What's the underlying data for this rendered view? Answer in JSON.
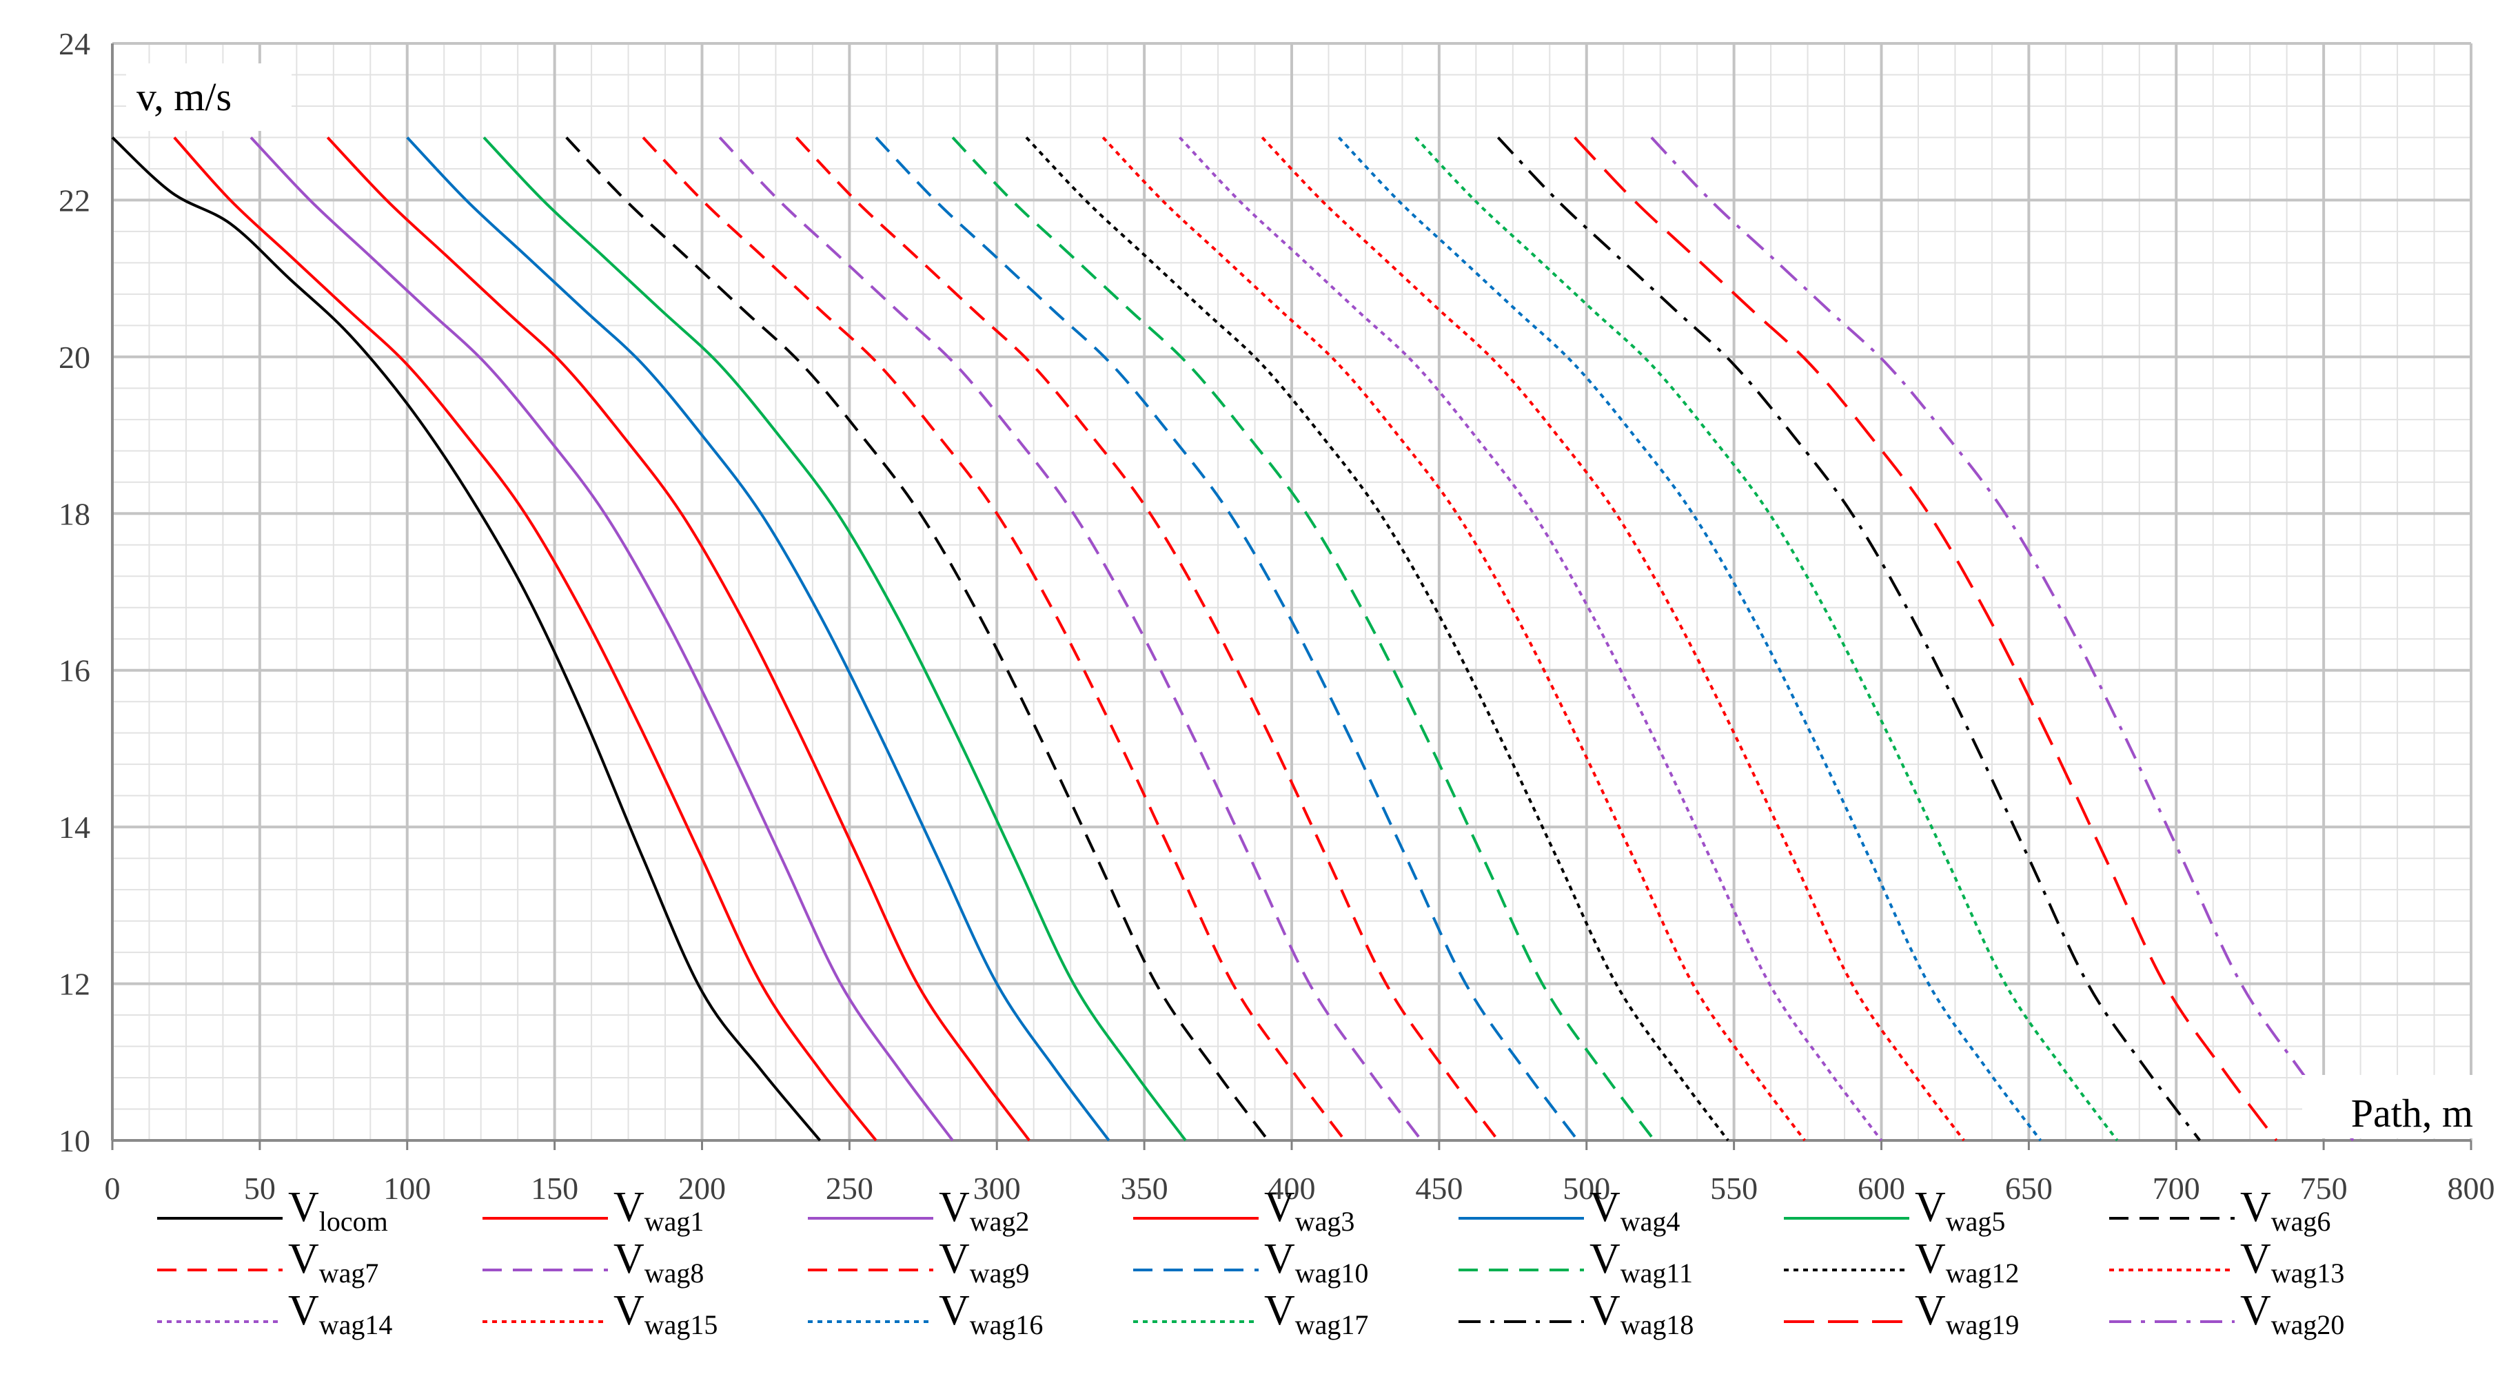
{
  "chart_data": {
    "type": "line",
    "title": "",
    "xlabel": "Path, m",
    "ylabel": "v, m/s",
    "xlim": [
      0,
      800
    ],
    "ylim": [
      10,
      24
    ],
    "xticks": [
      "0",
      "50",
      "100",
      "150",
      "200",
      "250",
      "300",
      "350",
      "400",
      "450",
      "500",
      "550",
      "600",
      "650",
      "700",
      "750",
      "800"
    ],
    "yticks": [
      "10",
      "12",
      "14",
      "16",
      "18",
      "20",
      "22",
      "24"
    ],
    "grid": true,
    "legend_position": "bottom",
    "series": [
      {
        "name_main": "V",
        "name_sub": "locom",
        "color": "#000000",
        "dash": "solid",
        "x": [
          0,
          20,
          40,
          60,
          80,
          100,
          120,
          140,
          160,
          180,
          200,
          220,
          240
        ],
        "y": [
          22.8,
          22.1,
          21.7,
          21.0,
          20.3,
          19.4,
          18.3,
          17.0,
          15.4,
          13.6,
          11.9,
          10.9,
          10.0
        ]
      },
      {
        "name_main": "V",
        "name_sub": "wag1",
        "color": "#ff0000",
        "dash": "solid",
        "x": [
          21,
          40,
          60,
          80,
          100,
          120,
          140,
          160,
          180,
          200,
          220,
          240,
          259
        ],
        "y": [
          22.8,
          22.0,
          21.3,
          20.6,
          19.9,
          19.0,
          18.0,
          16.7,
          15.2,
          13.6,
          12.0,
          10.9,
          10.0
        ]
      },
      {
        "name_main": "V",
        "name_sub": "wag2",
        "color": "#9e50c8",
        "dash": "solid",
        "x": [
          47,
          67,
          87,
          107,
          127,
          147,
          167,
          187,
          207,
          227,
          247,
          267,
          285
        ],
        "y": [
          22.8,
          22.0,
          21.3,
          20.6,
          19.9,
          19.0,
          18.0,
          16.7,
          15.2,
          13.6,
          12.0,
          10.9,
          10.0
        ]
      },
      {
        "name_main": "V",
        "name_sub": "wag3",
        "color": "#ff0000",
        "dash": "solid",
        "x": [
          73,
          93,
          113,
          133,
          153,
          173,
          193,
          213,
          233,
          253,
          273,
          293,
          311
        ],
        "y": [
          22.8,
          22.0,
          21.3,
          20.6,
          19.9,
          19.0,
          18.0,
          16.7,
          15.2,
          13.6,
          12.0,
          10.9,
          10.0
        ]
      },
      {
        "name_main": "V",
        "name_sub": "wag4",
        "color": "#0070c0",
        "dash": "solid",
        "x": [
          100,
          120,
          140,
          160,
          180,
          200,
          220,
          240,
          260,
          280,
          300,
          320,
          338
        ],
        "y": [
          22.8,
          22.0,
          21.3,
          20.6,
          19.9,
          19.0,
          18.0,
          16.7,
          15.2,
          13.6,
          12.0,
          10.9,
          10.0
        ]
      },
      {
        "name_main": "V",
        "name_sub": "wag5",
        "color": "#00b050",
        "dash": "solid",
        "x": [
          126,
          146,
          166,
          186,
          206,
          226,
          246,
          266,
          286,
          306,
          326,
          346,
          364
        ],
        "y": [
          22.8,
          22.0,
          21.3,
          20.6,
          19.9,
          19.0,
          18.0,
          16.7,
          15.2,
          13.6,
          12.0,
          10.9,
          10.0
        ]
      },
      {
        "name_main": "V",
        "name_sub": "wag6",
        "color": "#000000",
        "dash": "dash",
        "x": [
          154,
          174,
          194,
          214,
          234,
          254,
          274,
          294,
          314,
          334,
          354,
          374,
          392
        ],
        "y": [
          22.8,
          22.0,
          21.3,
          20.6,
          19.9,
          19.0,
          18.0,
          16.7,
          15.2,
          13.6,
          12.0,
          10.9,
          10.0
        ]
      },
      {
        "name_main": "V",
        "name_sub": "wag7",
        "color": "#ff0000",
        "dash": "dash",
        "x": [
          180,
          200,
          220,
          240,
          260,
          280,
          300,
          320,
          340,
          360,
          380,
          400,
          418
        ],
        "y": [
          22.8,
          22.0,
          21.3,
          20.6,
          19.9,
          19.0,
          18.0,
          16.7,
          15.2,
          13.6,
          12.0,
          10.9,
          10.0
        ]
      },
      {
        "name_main": "V",
        "name_sub": "wag8",
        "color": "#9e50c8",
        "dash": "dash",
        "x": [
          206,
          226,
          246,
          266,
          286,
          306,
          326,
          346,
          366,
          386,
          406,
          426,
          444
        ],
        "y": [
          22.8,
          22.0,
          21.3,
          20.6,
          19.9,
          19.0,
          18.0,
          16.7,
          15.2,
          13.6,
          12.0,
          10.9,
          10.0
        ]
      },
      {
        "name_main": "V",
        "name_sub": "wag9",
        "color": "#ff0000",
        "dash": "dash",
        "x": [
          232,
          252,
          272,
          292,
          312,
          332,
          352,
          372,
          392,
          412,
          432,
          452,
          470
        ],
        "y": [
          22.8,
          22.0,
          21.3,
          20.6,
          19.9,
          19.0,
          18.0,
          16.7,
          15.2,
          13.6,
          12.0,
          10.9,
          10.0
        ]
      },
      {
        "name_main": "V",
        "name_sub": "wag10",
        "color": "#0070c0",
        "dash": "dash",
        "x": [
          259,
          279,
          299,
          319,
          339,
          359,
          379,
          399,
          419,
          439,
          459,
          479,
          497
        ],
        "y": [
          22.8,
          22.0,
          21.3,
          20.6,
          19.9,
          19.0,
          18.0,
          16.7,
          15.2,
          13.6,
          12.0,
          10.9,
          10.0
        ]
      },
      {
        "name_main": "V",
        "name_sub": "wag11",
        "color": "#00b050",
        "dash": "dash",
        "x": [
          285,
          305,
          325,
          345,
          365,
          385,
          405,
          425,
          445,
          465,
          485,
          505,
          523
        ],
        "y": [
          22.8,
          22.0,
          21.3,
          20.6,
          19.9,
          19.0,
          18.0,
          16.7,
          15.2,
          13.6,
          12.0,
          10.9,
          10.0
        ]
      },
      {
        "name_main": "V",
        "name_sub": "wag12",
        "color": "#000000",
        "dash": "dot",
        "x": [
          310,
          330,
          350,
          370,
          390,
          410,
          430,
          450,
          470,
          490,
          510,
          530,
          548
        ],
        "y": [
          22.8,
          22.0,
          21.3,
          20.6,
          19.9,
          19.0,
          18.0,
          16.7,
          15.2,
          13.6,
          12.0,
          10.9,
          10.0
        ]
      },
      {
        "name_main": "V",
        "name_sub": "wag13",
        "color": "#ff0000",
        "dash": "dot",
        "x": [
          336,
          356,
          376,
          396,
          416,
          436,
          456,
          476,
          496,
          516,
          536,
          556,
          574
        ],
        "y": [
          22.8,
          22.0,
          21.3,
          20.6,
          19.9,
          19.0,
          18.0,
          16.7,
          15.2,
          13.6,
          12.0,
          10.9,
          10.0
        ]
      },
      {
        "name_main": "V",
        "name_sub": "wag14",
        "color": "#9e50c8",
        "dash": "dot",
        "x": [
          362,
          382,
          402,
          422,
          442,
          462,
          482,
          502,
          522,
          542,
          562,
          582,
          600
        ],
        "y": [
          22.8,
          22.0,
          21.3,
          20.6,
          19.9,
          19.0,
          18.0,
          16.7,
          15.2,
          13.6,
          12.0,
          10.9,
          10.0
        ]
      },
      {
        "name_main": "V",
        "name_sub": "wag15",
        "color": "#ff0000",
        "dash": "dot",
        "x": [
          390,
          410,
          430,
          450,
          470,
          490,
          510,
          530,
          550,
          570,
          590,
          610,
          628
        ],
        "y": [
          22.8,
          22.0,
          21.3,
          20.6,
          19.9,
          19.0,
          18.0,
          16.7,
          15.2,
          13.6,
          12.0,
          10.9,
          10.0
        ]
      },
      {
        "name_main": "V",
        "name_sub": "wag16",
        "color": "#0070c0",
        "dash": "dot",
        "x": [
          416,
          436,
          456,
          476,
          496,
          516,
          536,
          556,
          576,
          596,
          616,
          636,
          654
        ],
        "y": [
          22.8,
          22.0,
          21.3,
          20.6,
          19.9,
          19.0,
          18.0,
          16.7,
          15.2,
          13.6,
          12.0,
          10.9,
          10.0
        ]
      },
      {
        "name_main": "V",
        "name_sub": "wag17",
        "color": "#00b050",
        "dash": "dot",
        "x": [
          442,
          462,
          482,
          502,
          522,
          542,
          562,
          582,
          602,
          622,
          642,
          662,
          680
        ],
        "y": [
          22.8,
          22.0,
          21.3,
          20.6,
          19.9,
          19.0,
          18.0,
          16.7,
          15.2,
          13.6,
          12.0,
          10.9,
          10.0
        ]
      },
      {
        "name_main": "V",
        "name_sub": "wag18",
        "color": "#000000",
        "dash": "dashdot",
        "x": [
          470,
          490,
          510,
          530,
          550,
          570,
          590,
          610,
          630,
          650,
          670,
          690,
          708
        ],
        "y": [
          22.8,
          22.0,
          21.3,
          20.6,
          19.9,
          19.0,
          18.0,
          16.7,
          15.2,
          13.6,
          12.0,
          10.9,
          10.0
        ]
      },
      {
        "name_main": "V",
        "name_sub": "wag19",
        "color": "#ff0000",
        "dash": "longdash",
        "x": [
          496,
          516,
          536,
          556,
          576,
          596,
          616,
          636,
          656,
          676,
          696,
          716,
          734
        ],
        "y": [
          22.8,
          22.0,
          21.3,
          20.6,
          19.9,
          19.0,
          18.0,
          16.7,
          15.2,
          13.6,
          12.0,
          10.9,
          10.0
        ]
      },
      {
        "name_main": "V",
        "name_sub": "wag20",
        "color": "#9e50c8",
        "dash": "dashdot",
        "x": [
          522,
          542,
          562,
          582,
          602,
          622,
          642,
          662,
          682,
          702,
          722,
          742,
          760
        ],
        "y": [
          22.8,
          22.0,
          21.3,
          20.6,
          19.9,
          19.0,
          18.0,
          16.7,
          15.2,
          13.6,
          12.0,
          10.9,
          10.0
        ]
      }
    ]
  }
}
